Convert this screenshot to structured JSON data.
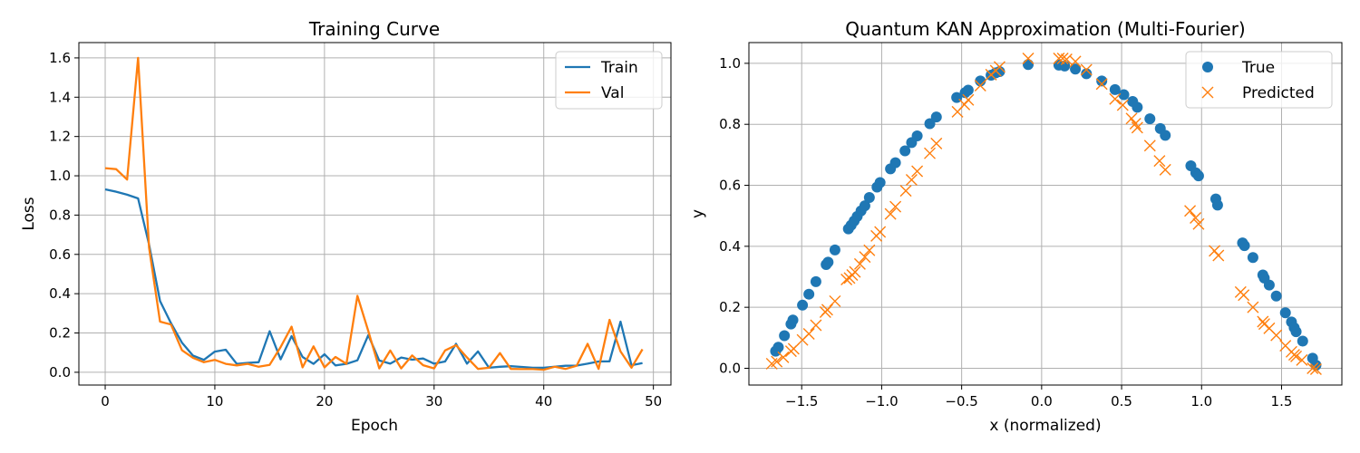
{
  "chart_data": [
    {
      "type": "line",
      "title": "Training Curve",
      "xlabel": "Epoch",
      "ylabel": "Loss",
      "xlim": [
        -2.4,
        51.6
      ],
      "ylim": [
        -0.065,
        1.678
      ],
      "xticks": [
        0,
        10,
        20,
        30,
        40,
        50
      ],
      "xtick_labels": [
        "0",
        "10",
        "20",
        "30",
        "40",
        "50"
      ],
      "yticks": [
        0,
        0.2,
        0.4,
        0.6,
        0.8,
        1.0,
        1.2,
        1.4,
        1.6
      ],
      "ytick_labels": [
        "0.0",
        "0.2",
        "0.4",
        "0.6",
        "0.8",
        "1.0",
        "1.2",
        "1.4",
        "1.6"
      ],
      "grid": true,
      "legend": "top-right",
      "x": [
        0,
        1,
        2,
        3,
        4,
        5,
        6,
        7,
        8,
        9,
        10,
        11,
        12,
        13,
        14,
        15,
        16,
        17,
        18,
        19,
        20,
        21,
        22,
        23,
        24,
        25,
        26,
        27,
        28,
        29,
        30,
        31,
        32,
        33,
        34,
        35,
        36,
        37,
        38,
        39,
        40,
        41,
        42,
        43,
        44,
        45,
        46,
        47,
        48,
        49
      ],
      "series": [
        {
          "name": "Train",
          "color": "#1f77b4",
          "values": [
            0.931,
            0.919,
            0.904,
            0.885,
            0.65,
            0.363,
            0.25,
            0.151,
            0.085,
            0.063,
            0.105,
            0.115,
            0.043,
            0.048,
            0.051,
            0.209,
            0.066,
            0.184,
            0.078,
            0.043,
            0.092,
            0.035,
            0.043,
            0.061,
            0.189,
            0.06,
            0.044,
            0.075,
            0.064,
            0.07,
            0.044,
            0.055,
            0.145,
            0.044,
            0.106,
            0.023,
            0.028,
            0.031,
            0.027,
            0.023,
            0.023,
            0.028,
            0.033,
            0.034,
            0.044,
            0.055,
            0.056,
            0.258,
            0.036,
            0.047
          ]
        },
        {
          "name": "Val",
          "color": "#ff7f0e",
          "values": [
            1.039,
            1.034,
            0.981,
            1.6,
            0.635,
            0.258,
            0.243,
            0.112,
            0.074,
            0.051,
            0.063,
            0.043,
            0.035,
            0.043,
            0.028,
            0.038,
            0.128,
            0.232,
            0.025,
            0.132,
            0.025,
            0.078,
            0.043,
            0.389,
            0.21,
            0.02,
            0.111,
            0.02,
            0.086,
            0.036,
            0.02,
            0.111,
            0.138,
            0.075,
            0.017,
            0.023,
            0.098,
            0.017,
            0.016,
            0.016,
            0.013,
            0.028,
            0.017,
            0.033,
            0.145,
            0.017,
            0.267,
            0.106,
            0.023,
            0.117
          ]
        }
      ]
    },
    {
      "type": "scatter",
      "title": "Quantum KAN Approximation (Multi-Fourier)",
      "xlabel": "x (normalized)",
      "ylabel": "y",
      "xlim": [
        -1.83,
        1.877
      ],
      "ylim": [
        -0.055,
        1.068
      ],
      "xticks": [
        -1.5,
        -1.0,
        -0.5,
        0.0,
        0.5,
        1.0,
        1.5
      ],
      "xtick_labels": [
        "−1.5",
        "−1.0",
        "−0.5",
        "0.0",
        "0.5",
        "1.0",
        "1.5"
      ],
      "yticks": [
        0,
        0.2,
        0.4,
        0.6,
        0.8,
        1.0
      ],
      "ytick_labels": [
        "0.0",
        "0.2",
        "0.4",
        "0.6",
        "0.8",
        "1.0"
      ],
      "grid": true,
      "legend": "top-right",
      "series": [
        {
          "name": "True",
          "color": "#1f77b4",
          "marker": "circle",
          "x": [
            -1.663,
            -1.646,
            -1.608,
            -1.567,
            -1.555,
            -1.495,
            -1.455,
            -1.411,
            -1.347,
            -1.335,
            -1.292,
            -1.208,
            -1.191,
            -1.172,
            -1.153,
            -1.129,
            -1.105,
            -1.077,
            -1.029,
            -1.01,
            -0.945,
            -0.914,
            -0.854,
            -0.813,
            -0.778,
            -0.699,
            -0.658,
            -0.531,
            -0.478,
            -0.459,
            -0.383,
            -0.316,
            -0.287,
            -0.263,
            -0.084,
            0.108,
            0.144,
            0.211,
            0.28,
            0.376,
            0.459,
            0.514,
            0.569,
            0.598,
            0.677,
            0.742,
            0.773,
            0.933,
            0.964,
            0.981,
            1.089,
            1.1,
            1.256,
            1.268,
            1.321,
            1.383,
            1.392,
            1.423,
            1.467,
            1.524,
            1.562,
            1.579,
            1.591,
            1.632,
            1.694,
            1.715
          ],
          "y": [
            0.056,
            0.069,
            0.107,
            0.145,
            0.158,
            0.207,
            0.243,
            0.284,
            0.34,
            0.348,
            0.388,
            0.457,
            0.469,
            0.483,
            0.498,
            0.516,
            0.533,
            0.56,
            0.594,
            0.609,
            0.654,
            0.674,
            0.713,
            0.74,
            0.762,
            0.802,
            0.824,
            0.888,
            0.904,
            0.912,
            0.942,
            0.961,
            0.969,
            0.973,
            0.996,
            0.994,
            0.991,
            0.981,
            0.966,
            0.942,
            0.914,
            0.897,
            0.875,
            0.856,
            0.818,
            0.786,
            0.764,
            0.664,
            0.641,
            0.631,
            0.555,
            0.535,
            0.411,
            0.402,
            0.363,
            0.306,
            0.296,
            0.273,
            0.237,
            0.182,
            0.152,
            0.133,
            0.12,
            0.089,
            0.033,
            0.01
          ]
        },
        {
          "name": "Predicted",
          "color": "#ff7f0e",
          "marker": "x",
          "x": [
            -1.687,
            -1.656,
            -1.615,
            -1.567,
            -1.55,
            -1.495,
            -1.455,
            -1.411,
            -1.352,
            -1.34,
            -1.292,
            -1.22,
            -1.201,
            -1.184,
            -1.167,
            -1.136,
            -1.105,
            -1.077,
            -1.033,
            -1.01,
            -0.945,
            -0.914,
            -0.849,
            -0.813,
            -0.778,
            -0.699,
            -0.658,
            -0.526,
            -0.483,
            -0.459,
            -0.383,
            -0.316,
            -0.287,
            -0.263,
            -0.084,
            0.108,
            0.132,
            0.156,
            0.211,
            0.28,
            0.376,
            0.459,
            0.507,
            0.562,
            0.586,
            0.598,
            0.677,
            0.737,
            0.773,
            0.928,
            0.962,
            0.981,
            1.081,
            1.105,
            1.244,
            1.263,
            1.321,
            1.383,
            1.392,
            1.423,
            1.467,
            1.524,
            1.562,
            1.579,
            1.591,
            1.627,
            1.694,
            1.715
          ],
          "y": [
            0.015,
            0.022,
            0.036,
            0.056,
            0.064,
            0.093,
            0.113,
            0.141,
            0.184,
            0.192,
            0.22,
            0.291,
            0.296,
            0.306,
            0.316,
            0.342,
            0.365,
            0.387,
            0.434,
            0.447,
            0.506,
            0.53,
            0.582,
            0.618,
            0.646,
            0.705,
            0.737,
            0.841,
            0.865,
            0.88,
            0.927,
            0.963,
            0.976,
            0.988,
            1.016,
            1.016,
            1.016,
            1.013,
            1.006,
            0.979,
            0.932,
            0.883,
            0.863,
            0.819,
            0.802,
            0.789,
            0.73,
            0.68,
            0.651,
            0.516,
            0.493,
            0.473,
            0.385,
            0.37,
            0.25,
            0.24,
            0.2,
            0.153,
            0.145,
            0.131,
            0.108,
            0.074,
            0.054,
            0.044,
            0.039,
            0.027,
            0.0,
            -0.003
          ]
        }
      ]
    }
  ]
}
